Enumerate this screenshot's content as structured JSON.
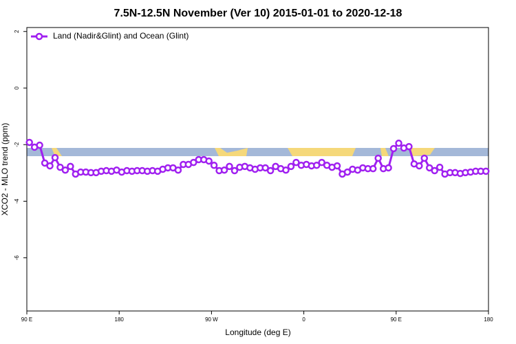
{
  "chart_data": {
    "type": "line",
    "title": "7.5N-12.5N November (Ver 10)   2015-01-01 to 2020-12-18",
    "xlabel": "Longitude (deg E)",
    "ylabel": "XCO2 - MLO trend (ppm)",
    "x": [
      92.5,
      97.5,
      102.5,
      107.5,
      112.5,
      117.5,
      122.5,
      127.5,
      132.5,
      137.5,
      142.5,
      147.5,
      152.5,
      157.5,
      162.5,
      167.5,
      172.5,
      177.5,
      182.5,
      187.5,
      192.5,
      197.5,
      202.5,
      207.5,
      212.5,
      217.5,
      222.5,
      227.5,
      232.5,
      237.5,
      242.5,
      247.5,
      252.5,
      257.5,
      262.5,
      267.5,
      272.5,
      277.5,
      282.5,
      287.5,
      292.5,
      297.5,
      302.5,
      307.5,
      312.5,
      317.5,
      322.5,
      327.5,
      332.5,
      337.5,
      342.5,
      347.5,
      352.5,
      357.5,
      362.5,
      367.5,
      372.5,
      377.5,
      382.5,
      387.5,
      392.5,
      397.5,
      402.5,
      407.5,
      412.5,
      417.5,
      422.5,
      427.5,
      432.5,
      437.5,
      442.5,
      447.5,
      452.5,
      457.5,
      462.5,
      467.5,
      472.5,
      477.5,
      482.5,
      487.5,
      492.5,
      497.5,
      502.5,
      507.5,
      512.5,
      517.5,
      522.5,
      527.5,
      532.5,
      537.5
    ],
    "series": [
      {
        "name": "Land (Nadir&Glint) and Ocean (Glint)",
        "color": "#a020f0",
        "values": [
          -1.92,
          -2.09,
          -2.02,
          -2.65,
          -2.75,
          -2.46,
          -2.8,
          -2.9,
          -2.77,
          -3.04,
          -2.97,
          -2.97,
          -2.99,
          -2.99,
          -2.94,
          -2.92,
          -2.94,
          -2.9,
          -2.97,
          -2.92,
          -2.94,
          -2.92,
          -2.92,
          -2.94,
          -2.92,
          -2.94,
          -2.87,
          -2.82,
          -2.82,
          -2.9,
          -2.7,
          -2.7,
          -2.63,
          -2.53,
          -2.53,
          -2.58,
          -2.73,
          -2.92,
          -2.9,
          -2.77,
          -2.92,
          -2.8,
          -2.77,
          -2.82,
          -2.87,
          -2.82,
          -2.82,
          -2.92,
          -2.77,
          -2.85,
          -2.9,
          -2.77,
          -2.63,
          -2.73,
          -2.7,
          -2.75,
          -2.73,
          -2.63,
          -2.73,
          -2.8,
          -2.75,
          -3.04,
          -2.97,
          -2.87,
          -2.9,
          -2.82,
          -2.85,
          -2.85,
          -2.48,
          -2.85,
          -2.82,
          -2.14,
          -1.95,
          -2.12,
          -2.07,
          -2.68,
          -2.75,
          -2.48,
          -2.82,
          -2.92,
          -2.8,
          -3.04,
          -2.99,
          -2.99,
          -3.02,
          -2.99,
          -2.97,
          -2.94,
          -2.94,
          -2.94
        ]
      }
    ],
    "xlim": [
      90,
      540
    ],
    "xticks": [
      {
        "value": 90,
        "label": "90 E"
      },
      {
        "value": 180,
        "label": "180"
      },
      {
        "value": 270,
        "label": "90 W"
      },
      {
        "value": 360,
        "label": "0"
      },
      {
        "value": 450,
        "label": "90 E"
      },
      {
        "value": 540,
        "label": "180"
      }
    ],
    "ylim": [
      -7.88,
      2.14
    ],
    "yticks": [
      2,
      0,
      -2,
      -4,
      -6
    ],
    "grid": false,
    "legend": "top-left"
  }
}
